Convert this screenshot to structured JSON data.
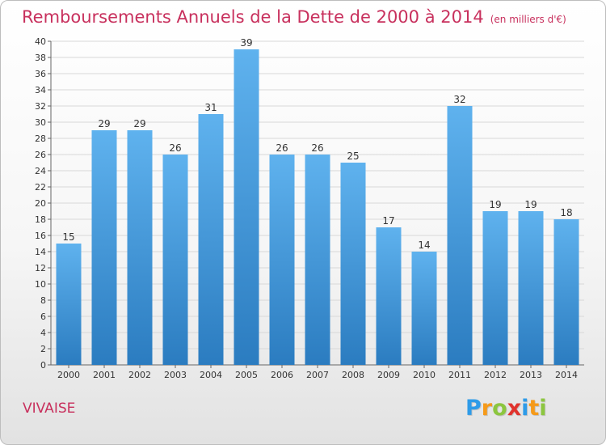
{
  "title": "Remboursements Annuels de la Dette de 2000 à 2014",
  "unit_note": "(en milliers d'€)",
  "commune": "VIVAISE",
  "logo": {
    "text": "Proxiti",
    "letters": [
      {
        "char": "P",
        "color": "#2e9be8"
      },
      {
        "char": "r",
        "color": "#f59a1a"
      },
      {
        "char": "o",
        "color": "#8cc63f"
      },
      {
        "char": "x",
        "color": "#e0332d"
      },
      {
        "char": "i",
        "color": "#2e9be8"
      },
      {
        "char": "t",
        "color": "#f59a1a"
      },
      {
        "char": "i",
        "color": "#8cc63f"
      }
    ]
  },
  "colors": {
    "title": "#c8305d",
    "bar_top": "#5fb2ee",
    "bar_bottom": "#2b7cc0",
    "grid": "#d8d8d8"
  },
  "chart_data": {
    "type": "bar",
    "categories": [
      "2000",
      "2001",
      "2002",
      "2003",
      "2004",
      "2005",
      "2006",
      "2007",
      "2008",
      "2009",
      "2010",
      "2011",
      "2012",
      "2013",
      "2014"
    ],
    "values": [
      15,
      29,
      29,
      26,
      31,
      39,
      26,
      26,
      25,
      17,
      14,
      32,
      19,
      19,
      18
    ],
    "ylim": [
      0,
      40
    ],
    "yticks": [
      0,
      2,
      4,
      6,
      8,
      10,
      12,
      14,
      16,
      18,
      20,
      22,
      24,
      26,
      28,
      30,
      32,
      34,
      36,
      38,
      40
    ],
    "grid": true,
    "legend": "none"
  }
}
